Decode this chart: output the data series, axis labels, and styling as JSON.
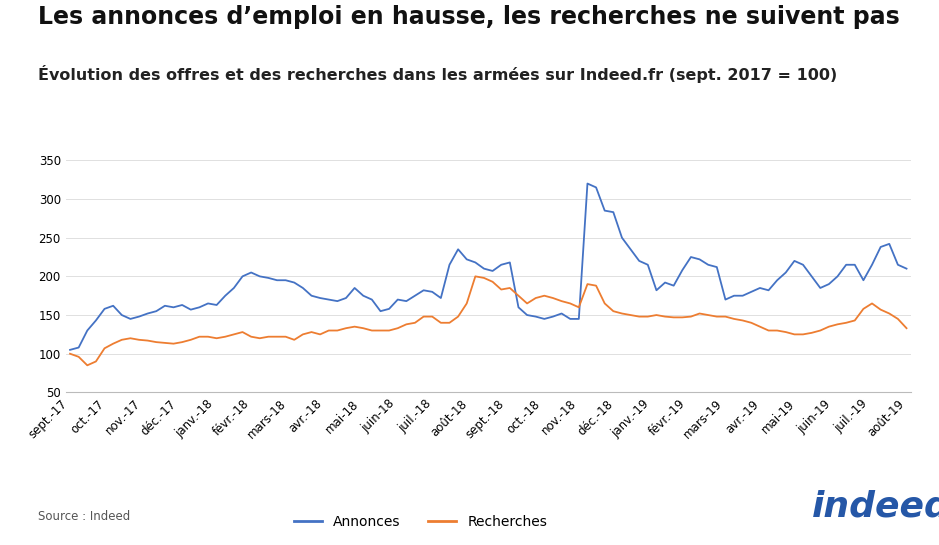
{
  "title": "Les annonces d’emploi en hausse, les recherches ne suivent pas",
  "subtitle": "Évolution des offres et des recherches dans les armées sur Indeed.fr (sept. 2017 = 100)",
  "source": "Source : Indeed",
  "x_labels": [
    "sept.-17",
    "oct.-17",
    "nov.-17",
    "déc.-17",
    "janv.-18",
    "févr.-18",
    "mars-18",
    "avr.-18",
    "mai-18",
    "juin-18",
    "juil.-18",
    "août-18",
    "sept.-18",
    "oct.-18",
    "nov.-18",
    "déc.-18",
    "janv.-19",
    "févr.-19",
    "mars-19",
    "avr.-19",
    "mai-19",
    "juin-19",
    "juil.-19",
    "août-19"
  ],
  "annonces": [
    105,
    108,
    130,
    143,
    158,
    162,
    150,
    145,
    148,
    152,
    155,
    162,
    160,
    163,
    157,
    160,
    165,
    163,
    175,
    185,
    200,
    205,
    200,
    198,
    195,
    195,
    192,
    185,
    175,
    172,
    170,
    168,
    172,
    185,
    175,
    170,
    155,
    158,
    170,
    168,
    175,
    182,
    180,
    172,
    215,
    235,
    222,
    218,
    210,
    207,
    215,
    218,
    160,
    150,
    148,
    145,
    148,
    152,
    145,
    145,
    320,
    315,
    285,
    283,
    250,
    235,
    220,
    215,
    182,
    192,
    188,
    208,
    225,
    222,
    215,
    212,
    170,
    175,
    175,
    180,
    185,
    182,
    195,
    205,
    220,
    215,
    200,
    185,
    190,
    200,
    215,
    215,
    195,
    215,
    238,
    242,
    215,
    210
  ],
  "recherches": [
    100,
    96,
    85,
    90,
    107,
    113,
    118,
    120,
    118,
    117,
    115,
    114,
    113,
    115,
    118,
    122,
    122,
    120,
    122,
    125,
    128,
    122,
    120,
    122,
    122,
    122,
    118,
    125,
    128,
    125,
    130,
    130,
    133,
    135,
    133,
    130,
    130,
    130,
    133,
    138,
    140,
    148,
    148,
    140,
    140,
    148,
    165,
    200,
    198,
    193,
    183,
    185,
    175,
    165,
    172,
    175,
    172,
    168,
    165,
    160,
    190,
    188,
    165,
    155,
    152,
    150,
    148,
    148,
    150,
    148,
    147,
    147,
    148,
    152,
    150,
    148,
    148,
    145,
    143,
    140,
    135,
    130,
    130,
    128,
    125,
    125,
    127,
    130,
    135,
    138,
    140,
    143,
    158,
    165,
    157,
    152,
    145,
    133
  ],
  "annonces_color": "#4472c4",
  "recherches_color": "#ed7d31",
  "background_color": "#ffffff",
  "ylim": [
    50,
    360
  ],
  "yticks": [
    50,
    100,
    150,
    200,
    250,
    300,
    350
  ],
  "line_width": 1.3,
  "title_fontsize": 17,
  "subtitle_fontsize": 11.5,
  "legend_fontsize": 10,
  "tick_fontsize": 8.5
}
